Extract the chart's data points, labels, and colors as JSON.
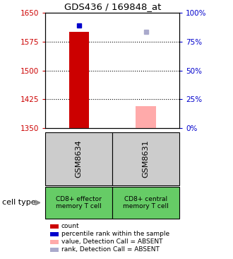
{
  "title": "GDS436 / 169848_at",
  "ylim_left": [
    1350,
    1650
  ],
  "yticks_left": [
    1350,
    1425,
    1500,
    1575,
    1650
  ],
  "yticks_right": [
    0,
    25,
    50,
    75,
    100
  ],
  "samples": [
    "GSM8634",
    "GSM8631"
  ],
  "cell_types": [
    "CD8+ effector\nmemory T cell",
    "CD8+ central\nmemory T cell"
  ],
  "bar_values": [
    1600,
    1408
  ],
  "bar_base": 1350,
  "bar_colors": [
    "#cc0000",
    "#ffaaaa"
  ],
  "square_values": [
    1617,
    1600
  ],
  "square_colors": [
    "#0000cc",
    "#aaaacc"
  ],
  "left_axis_color": "#cc0000",
  "right_axis_color": "#0000cc",
  "dotted_line_values": [
    1425,
    1500,
    1575
  ],
  "legend_items": [
    {
      "color": "#cc0000",
      "label": "count"
    },
    {
      "color": "#0000cc",
      "label": "percentile rank within the sample"
    },
    {
      "color": "#ffaaaa",
      "label": "value, Detection Call = ABSENT"
    },
    {
      "color": "#aaaacc",
      "label": "rank, Detection Call = ABSENT"
    }
  ]
}
